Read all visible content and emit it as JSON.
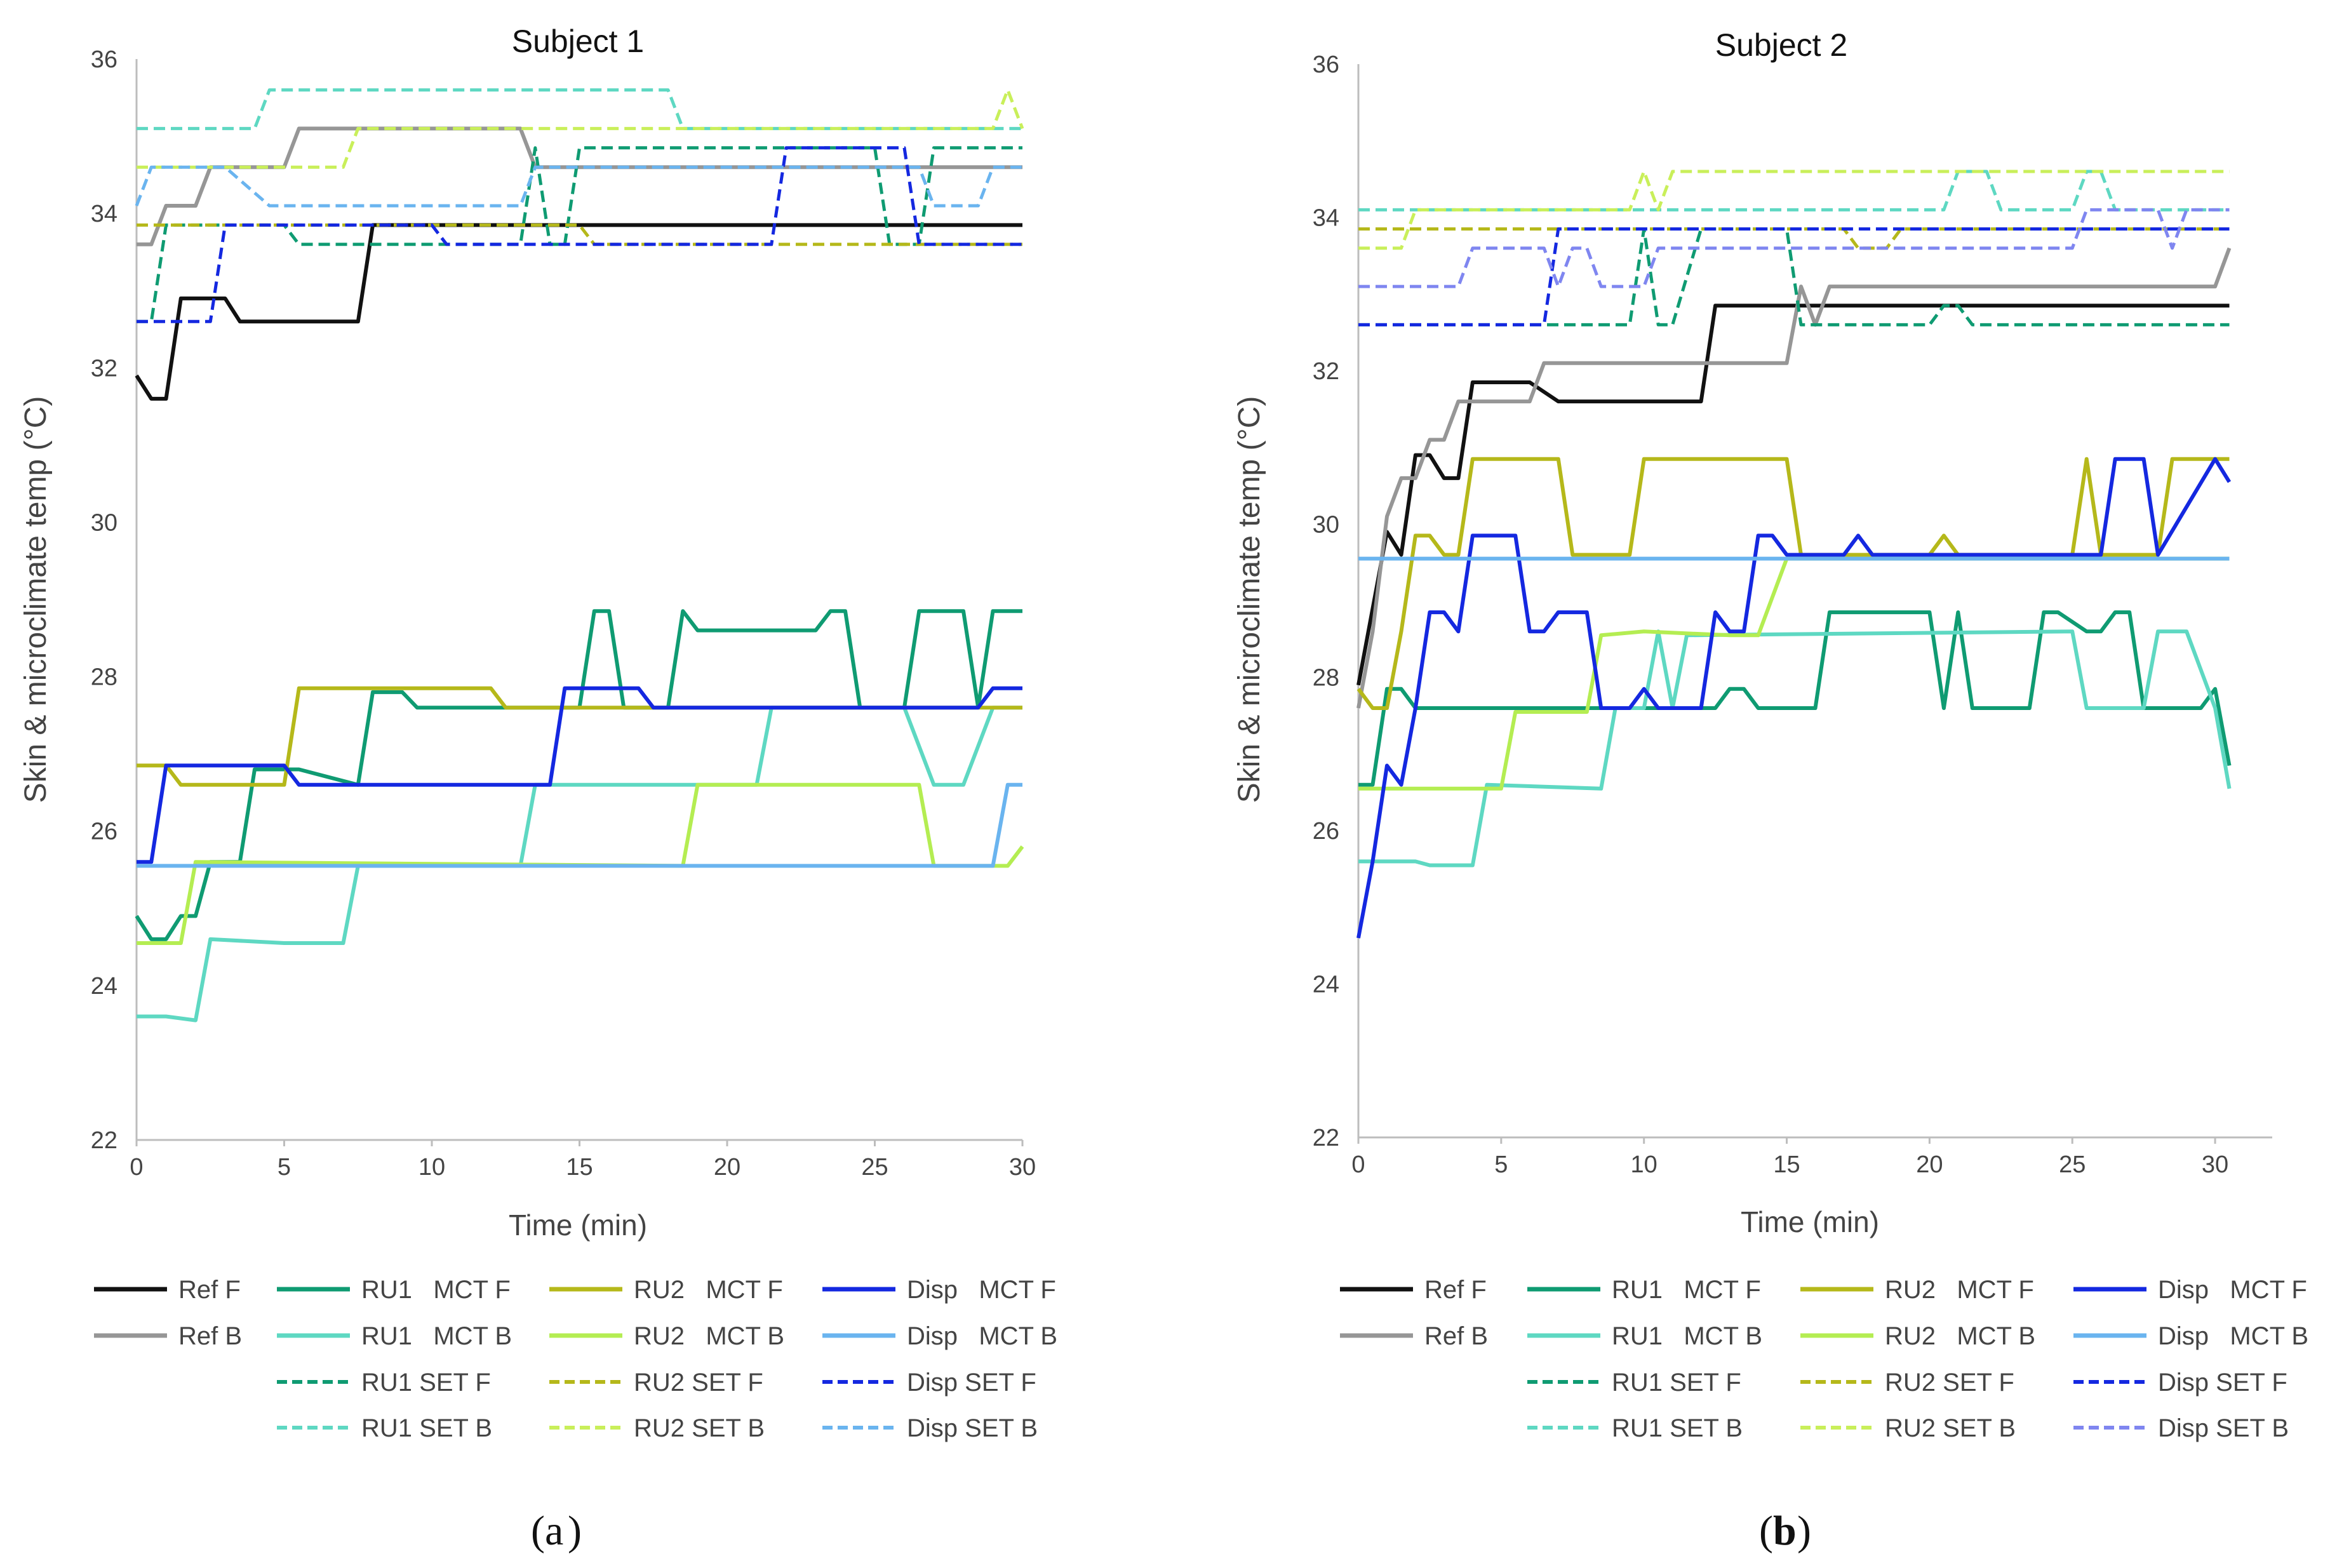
{
  "figure": {
    "panel_labels": [
      "(",
      "a",
      ")",
      "(",
      "b",
      ")"
    ]
  },
  "chart_data": [
    {
      "type": "line",
      "panel": "a",
      "title": "Subject 1",
      "xlabel": "Time (min)",
      "ylabel": "Skin & microclimate temp (°C)",
      "xlim": [
        0,
        30
      ],
      "ylim": [
        22,
        36
      ],
      "xticks": [
        0,
        5,
        10,
        15,
        20,
        25,
        30
      ],
      "yticks": [
        22,
        24,
        26,
        28,
        30,
        32,
        34,
        36
      ],
      "grid": false,
      "legend_position": "bottom",
      "series": [
        {
          "name": "Ref F",
          "color": "#111111",
          "dash": "solid",
          "x": [
            0,
            0.5,
            1,
            1.5,
            3,
            3.5,
            7.5,
            8,
            30
          ],
          "y": [
            31.9,
            31.6,
            31.6,
            32.9,
            32.9,
            32.6,
            32.6,
            33.85,
            33.85
          ]
        },
        {
          "name": "Ref B",
          "color": "#969696",
          "dash": "solid",
          "x": [
            0,
            0.5,
            1,
            2,
            2.5,
            5,
            5.5,
            13,
            13.5,
            30
          ],
          "y": [
            33.6,
            33.6,
            34.1,
            34.1,
            34.6,
            34.6,
            35.1,
            35.1,
            34.6,
            34.6
          ]
        },
        {
          "name": "RU1   MCT F",
          "color": "#0f9b72",
          "dash": "solid",
          "x": [
            0,
            0.5,
            1,
            1.5,
            2,
            2.5,
            3,
            3.5,
            4,
            5,
            5.5,
            7.5,
            8,
            9,
            9.5,
            12,
            15,
            15.5,
            16,
            16.5,
            18,
            18.5,
            19,
            23,
            23.5,
            24,
            24.5,
            26,
            26.5,
            28,
            28.5,
            29,
            29.5,
            30
          ],
          "y": [
            24.9,
            24.6,
            24.6,
            24.9,
            24.9,
            25.6,
            25.6,
            25.6,
            26.8,
            26.8,
            26.8,
            26.6,
            27.8,
            27.8,
            27.6,
            27.6,
            27.6,
            28.85,
            28.85,
            27.6,
            27.6,
            28.85,
            28.6,
            28.6,
            28.85,
            28.85,
            27.6,
            27.6,
            28.85,
            28.85,
            27.6,
            28.85,
            28.85,
            28.85
          ]
        },
        {
          "name": "RU1   MCT B",
          "color": "#5ed8c2",
          "dash": "solid",
          "x": [
            0,
            1,
            2,
            2.5,
            5,
            7,
            7.5,
            13,
            13.5,
            20,
            21,
            21.5,
            24,
            26,
            27,
            28,
            29,
            30
          ],
          "y": [
            23.6,
            23.6,
            23.55,
            24.6,
            24.55,
            24.55,
            25.55,
            25.55,
            26.6,
            26.6,
            26.6,
            27.6,
            27.6,
            27.6,
            26.6,
            26.6,
            27.6,
            27.6
          ]
        },
        {
          "name": "RU2   MCT F",
          "color": "#b5b81a",
          "dash": "solid",
          "x": [
            0,
            1,
            1.5,
            5,
            5.5,
            12,
            12.5,
            30
          ],
          "y": [
            26.85,
            26.85,
            26.6,
            26.6,
            27.85,
            27.85,
            27.6,
            27.6
          ]
        },
        {
          "name": "RU2   MCT B",
          "color": "#b4ed52",
          "dash": "solid",
          "x": [
            0,
            1.5,
            2,
            18.5,
            19,
            26.5,
            27,
            29.5,
            30
          ],
          "y": [
            24.55,
            24.55,
            25.6,
            25.55,
            26.6,
            26.6,
            25.55,
            25.55,
            25.8
          ]
        },
        {
          "name": "Disp   MCT F",
          "color": "#1428e0",
          "dash": "solid",
          "x": [
            0,
            0.5,
            1,
            5,
            5.5,
            14,
            14.5,
            17,
            17.5,
            28.5,
            29,
            30
          ],
          "y": [
            25.6,
            25.6,
            26.85,
            26.85,
            26.6,
            26.6,
            27.85,
            27.85,
            27.6,
            27.6,
            27.85,
            27.85
          ]
        },
        {
          "name": "Disp   MCT B",
          "color": "#6ab4ef",
          "dash": "solid",
          "x": [
            0,
            29,
            29.5,
            30
          ],
          "y": [
            25.55,
            25.55,
            26.6,
            26.6
          ]
        },
        {
          "name": "RU1 SET F",
          "color": "#0f9b72",
          "dash": "dashed",
          "x": [
            0,
            0.5,
            1,
            5,
            5.5,
            13,
            13.5,
            14,
            14.5,
            15,
            25,
            25.5,
            26.5,
            27,
            30
          ],
          "y": [
            32.6,
            32.6,
            33.85,
            33.85,
            33.6,
            33.6,
            34.85,
            33.6,
            33.6,
            34.85,
            34.85,
            33.6,
            33.6,
            34.85,
            34.85
          ]
        },
        {
          "name": "RU1 SET B",
          "color": "#5ed8c2",
          "dash": "dashed",
          "x": [
            0,
            4,
            4.5,
            18,
            18.5,
            30
          ],
          "y": [
            35.1,
            35.1,
            35.6,
            35.6,
            35.1,
            35.1
          ]
        },
        {
          "name": "RU2 SET F",
          "color": "#b5b81a",
          "dash": "dashed",
          "x": [
            0,
            15,
            15.5,
            30
          ],
          "y": [
            33.85,
            33.85,
            33.6,
            33.6
          ]
        },
        {
          "name": "RU2 SET B",
          "color": "#c9ef5a",
          "dash": "dashed",
          "x": [
            0,
            7,
            7.5,
            18,
            18.5,
            29,
            29.5,
            30
          ],
          "y": [
            34.6,
            34.6,
            35.1,
            35.1,
            35.1,
            35.1,
            35.6,
            35.1
          ]
        },
        {
          "name": "Disp SET F",
          "color": "#1428e0",
          "dash": "dashed",
          "x": [
            0,
            2.5,
            3,
            10,
            10.5,
            21.5,
            22,
            26,
            26.5,
            30
          ],
          "y": [
            32.6,
            32.6,
            33.85,
            33.85,
            33.6,
            33.6,
            34.85,
            34.85,
            33.6,
            33.6
          ]
        },
        {
          "name": "Disp SET B",
          "color": "#6ab4ef",
          "dash": "dashed",
          "x": [
            0,
            0.5,
            3,
            4.5,
            13,
            13.5,
            26.5,
            27,
            28.5,
            29,
            30
          ],
          "y": [
            34.1,
            34.6,
            34.6,
            34.1,
            34.1,
            34.6,
            34.6,
            34.1,
            34.1,
            34.6,
            34.6
          ]
        }
      ]
    },
    {
      "type": "line",
      "panel": "b",
      "title": "Subject 2",
      "xlabel": "Time (min)",
      "ylabel": "Skin & microclimate temp (°C)",
      "xlim": [
        0,
        32
      ],
      "ylim": [
        22,
        36
      ],
      "xticks": [
        0,
        5,
        10,
        15,
        20,
        25,
        30
      ],
      "yticks": [
        22,
        24,
        26,
        28,
        30,
        32,
        34,
        36
      ],
      "grid": false,
      "legend_position": "bottom",
      "series": [
        {
          "name": "Ref F",
          "color": "#111111",
          "dash": "solid",
          "x": [
            0,
            0.5,
            1,
            1.5,
            2,
            2.5,
            3,
            3.5,
            4,
            6,
            7,
            12,
            12.5,
            30.5
          ],
          "y": [
            27.9,
            28.9,
            29.9,
            29.6,
            30.9,
            30.9,
            30.6,
            30.6,
            31.85,
            31.85,
            31.6,
            31.6,
            32.85,
            32.85
          ]
        },
        {
          "name": "Ref B",
          "color": "#969696",
          "dash": "solid",
          "x": [
            0,
            0.5,
            1,
            1.5,
            2,
            2.5,
            3,
            3.5,
            6,
            6.5,
            15,
            15.5,
            16,
            16.5,
            30,
            30.5
          ],
          "y": [
            27.6,
            28.6,
            30.1,
            30.6,
            30.6,
            31.1,
            31.1,
            31.6,
            31.6,
            32.1,
            32.1,
            33.1,
            32.6,
            33.1,
            33.1,
            33.6
          ]
        },
        {
          "name": "RU1   MCT F",
          "color": "#0f9b72",
          "dash": "solid",
          "x": [
            0,
            0.5,
            1,
            1.5,
            2,
            12,
            12.5,
            13,
            13.5,
            14,
            16,
            16.5,
            20,
            20.5,
            21,
            21.5,
            23.5,
            24,
            24.5,
            25.5,
            26,
            26.5,
            27,
            27.5,
            29.5,
            30,
            30.5
          ],
          "y": [
            26.6,
            26.6,
            27.85,
            27.85,
            27.6,
            27.6,
            27.6,
            27.85,
            27.85,
            27.6,
            27.6,
            28.85,
            28.85,
            27.6,
            28.85,
            27.6,
            27.6,
            28.85,
            28.85,
            28.6,
            28.6,
            28.85,
            28.85,
            27.6,
            27.6,
            27.85,
            26.85
          ]
        },
        {
          "name": "RU1   MCT B",
          "color": "#5ed8c2",
          "dash": "solid",
          "x": [
            0,
            2,
            2.5,
            4,
            4.5,
            8.5,
            9,
            10,
            10.5,
            11,
            11.5,
            25,
            25.5,
            27.5,
            28,
            29,
            30,
            30.5
          ],
          "y": [
            25.6,
            25.6,
            25.55,
            25.55,
            26.6,
            26.55,
            27.6,
            27.6,
            28.6,
            27.6,
            28.55,
            28.6,
            27.6,
            27.6,
            28.6,
            28.6,
            27.6,
            26.55
          ]
        },
        {
          "name": "RU2   MCT F",
          "color": "#b5b81a",
          "dash": "solid",
          "x": [
            0,
            0.5,
            1,
            1.5,
            2,
            2.5,
            3,
            3.5,
            4,
            7,
            7.5,
            9.5,
            10,
            15,
            15.5,
            20,
            20.5,
            21,
            25,
            25.5,
            26,
            28,
            28.5,
            30.5
          ],
          "y": [
            27.85,
            27.6,
            27.6,
            28.6,
            29.85,
            29.85,
            29.6,
            29.6,
            30.85,
            30.85,
            29.6,
            29.6,
            30.85,
            30.85,
            29.6,
            29.6,
            29.85,
            29.6,
            29.6,
            30.85,
            29.6,
            29.6,
            30.85,
            30.85
          ]
        },
        {
          "name": "RU2   MCT B",
          "color": "#b4ed52",
          "dash": "solid",
          "x": [
            0,
            5,
            5.5,
            8,
            8.5,
            10,
            13,
            14,
            15,
            30.5
          ],
          "y": [
            26.55,
            26.55,
            27.55,
            27.55,
            28.55,
            28.6,
            28.55,
            28.55,
            29.55,
            29.55
          ]
        },
        {
          "name": "Disp   MCT F",
          "color": "#1428e0",
          "dash": "solid",
          "x": [
            0,
            0.5,
            1,
            1.5,
            2,
            2.5,
            3,
            3.5,
            4,
            5.5,
            6,
            6.5,
            7,
            8,
            8.5,
            9.5,
            10,
            10.5,
            12,
            12.5,
            13,
            13.5,
            14,
            14.5,
            15,
            17,
            17.5,
            18,
            26,
            26.5,
            27.5,
            28,
            30,
            30.5
          ],
          "y": [
            24.6,
            25.6,
            26.85,
            26.6,
            27.6,
            28.85,
            28.85,
            28.6,
            29.85,
            29.85,
            28.6,
            28.6,
            28.85,
            28.85,
            27.6,
            27.6,
            27.85,
            27.6,
            27.6,
            28.85,
            28.6,
            28.6,
            29.85,
            29.85,
            29.6,
            29.6,
            29.85,
            29.6,
            29.6,
            30.85,
            30.85,
            29.6,
            30.85,
            30.55
          ]
        },
        {
          "name": "Disp   MCT B",
          "color": "#6ab4ef",
          "dash": "solid",
          "x": [
            0,
            30.5
          ],
          "y": [
            29.55,
            29.55
          ]
        },
        {
          "name": "RU1 SET F",
          "color": "#0f9b72",
          "dash": "dashed",
          "x": [
            0,
            6,
            6.5,
            9.5,
            10,
            10.5,
            11,
            12,
            15,
            15.5,
            20,
            20.5,
            21,
            21.5,
            30.5
          ],
          "y": [
            32.6,
            32.6,
            32.6,
            32.6,
            33.85,
            32.6,
            32.6,
            33.85,
            33.85,
            32.6,
            32.6,
            32.85,
            32.85,
            32.6,
            32.6
          ]
        },
        {
          "name": "RU1 SET B",
          "color": "#5ed8c2",
          "dash": "dashed",
          "x": [
            0,
            2,
            2.5,
            14,
            14.5,
            20.5,
            21,
            22,
            22.5,
            25,
            25.5,
            26,
            26.5,
            30.5
          ],
          "y": [
            34.1,
            34.1,
            34.1,
            34.1,
            34.1,
            34.1,
            34.6,
            34.6,
            34.1,
            34.1,
            34.6,
            34.6,
            34.1,
            34.1
          ]
        },
        {
          "name": "RU2 SET F",
          "color": "#b5b81a",
          "dash": "dashed",
          "x": [
            0,
            17,
            17.5,
            18.5,
            19,
            30.5
          ],
          "y": [
            33.85,
            33.85,
            33.6,
            33.6,
            33.85,
            33.85
          ]
        },
        {
          "name": "RU2 SET B",
          "color": "#c9ef5a",
          "dash": "dashed",
          "x": [
            0,
            1.5,
            2,
            9.5,
            10,
            10.5,
            11,
            30.5
          ],
          "y": [
            33.6,
            33.6,
            34.1,
            34.1,
            34.6,
            34.1,
            34.6,
            34.6
          ]
        },
        {
          "name": "Disp SET F",
          "color": "#1428e0",
          "dash": "dashed",
          "x": [
            0,
            6.5,
            7,
            30.5
          ],
          "y": [
            32.6,
            32.6,
            33.85,
            33.85
          ]
        },
        {
          "name": "Disp SET B",
          "color": "#7f86f0",
          "dash": "dashed",
          "x": [
            0,
            3.5,
            4,
            6.5,
            7,
            7.5,
            8,
            8.5,
            10,
            10.5,
            11,
            11.5,
            25,
            25.5,
            26,
            28,
            28.5,
            29,
            30.5
          ],
          "y": [
            33.1,
            33.1,
            33.6,
            33.6,
            33.1,
            33.6,
            33.6,
            33.1,
            33.1,
            33.6,
            33.6,
            33.6,
            33.6,
            34.1,
            34.1,
            34.1,
            33.6,
            34.1,
            34.1
          ]
        }
      ]
    }
  ]
}
